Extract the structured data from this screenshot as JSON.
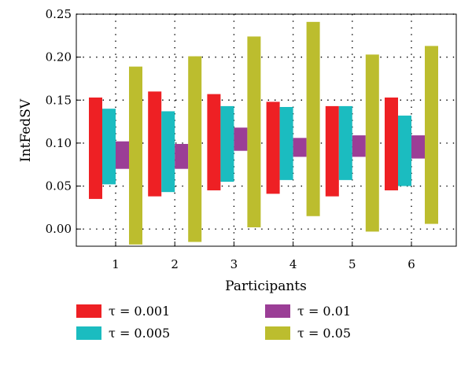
{
  "chart_data": {
    "type": "bar",
    "subtype": "floating-range",
    "title": "",
    "xlabel": "Participants",
    "ylabel": "IntFedSV",
    "ylim": [
      -0.02,
      0.25
    ],
    "yticks": [
      "0.00",
      "0.05",
      "0.10",
      "0.15",
      "0.20",
      "0.25"
    ],
    "grid": true,
    "legend_position": "bottom",
    "categories": [
      "1",
      "2",
      "3",
      "4",
      "5",
      "6"
    ],
    "series": [
      {
        "name": "τ = 0.001",
        "color": "#ee2024",
        "low": [
          0.035,
          0.038,
          0.045,
          0.041,
          0.038,
          0.045
        ],
        "high": [
          0.153,
          0.16,
          0.157,
          0.148,
          0.143,
          0.153
        ]
      },
      {
        "name": "τ = 0.005",
        "color": "#1bbcc0",
        "low": [
          0.052,
          0.043,
          0.055,
          0.057,
          0.057,
          0.05
        ],
        "high": [
          0.14,
          0.137,
          0.143,
          0.142,
          0.143,
          0.132
        ]
      },
      {
        "name": "τ = 0.01",
        "color": "#9b3e96",
        "low": [
          0.07,
          0.07,
          0.091,
          0.084,
          0.084,
          0.082
        ],
        "high": [
          0.102,
          0.099,
          0.118,
          0.106,
          0.109,
          0.109
        ]
      },
      {
        "name": "τ = 0.05",
        "color": "#bcbd2e",
        "low": [
          -0.018,
          -0.015,
          0.002,
          0.015,
          -0.003,
          0.006
        ],
        "high": [
          0.189,
          0.201,
          0.224,
          0.241,
          0.203,
          0.213
        ]
      }
    ]
  }
}
